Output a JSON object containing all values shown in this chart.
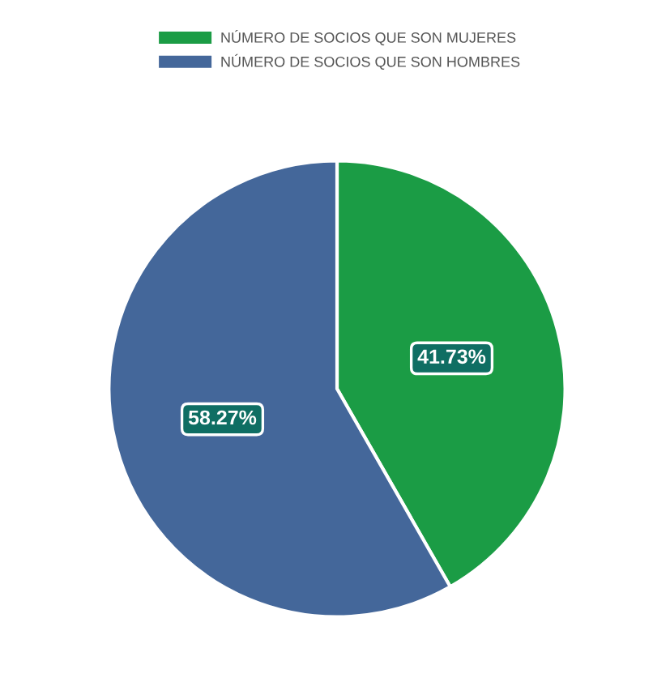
{
  "chart_data": {
    "type": "pie",
    "categories": [
      "NÚMERO DE SOCIOS QUE SON MUJERES",
      "NÚMERO DE SOCIOS QUE SON HOMBRES"
    ],
    "values": [
      41.73,
      58.27
    ],
    "colors": [
      "#1b9c45",
      "#44679a"
    ],
    "value_labels": [
      "41.73%",
      "58.27%"
    ],
    "legend": "top"
  }
}
